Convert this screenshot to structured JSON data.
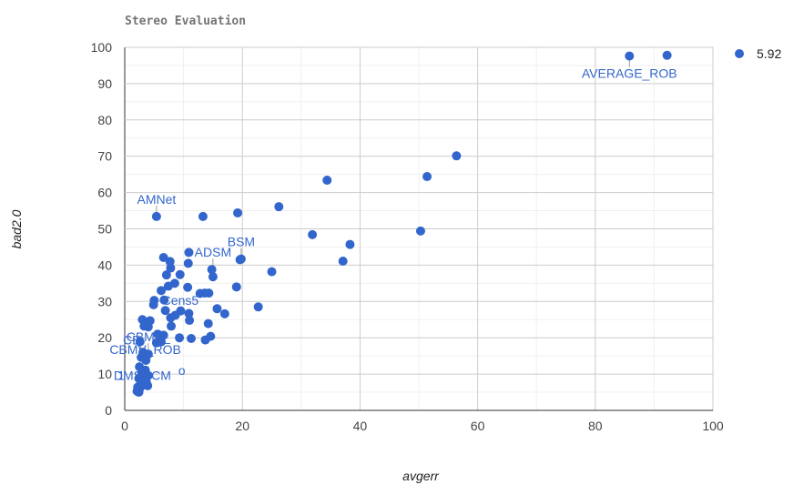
{
  "chart_data": {
    "type": "scatter",
    "title": "Stereo Evaluation",
    "xlabel": "avgerr",
    "ylabel": "bad2.0",
    "xlim": [
      0,
      100
    ],
    "ylim": [
      0,
      100
    ],
    "xticks": [
      "0",
      "20",
      "40",
      "60",
      "80",
      "100"
    ],
    "yticks": [
      "0",
      "10",
      "20",
      "30",
      "40",
      "50",
      "60",
      "70",
      "80",
      "90",
      "100"
    ],
    "grid": true,
    "legend_position": "right",
    "color": "#3366cc",
    "series": [
      {
        "name": "5.92",
        "points": [
          [
            85.8,
            97.6
          ],
          [
            92.2,
            97.8
          ],
          [
            56.4,
            70.1
          ],
          [
            51.4,
            64.4
          ],
          [
            50.3,
            49.4
          ],
          [
            34.4,
            63.4
          ],
          [
            26.2,
            56.1
          ],
          [
            31.9,
            48.4
          ],
          [
            38.3,
            45.7
          ],
          [
            37.1,
            41.1
          ],
          [
            25.0,
            38.2
          ],
          [
            22.7,
            28.5
          ],
          [
            19.2,
            54.4
          ],
          [
            13.3,
            53.4
          ],
          [
            5.4,
            53.4
          ],
          [
            19.8,
            41.7
          ],
          [
            19.6,
            41.5
          ],
          [
            19.0,
            34.0
          ],
          [
            14.8,
            38.8
          ],
          [
            15.0,
            36.8
          ],
          [
            10.9,
            43.5
          ],
          [
            10.8,
            40.5
          ],
          [
            6.6,
            42.1
          ],
          [
            7.7,
            41.0
          ],
          [
            7.8,
            39.2
          ],
          [
            7.1,
            37.3
          ],
          [
            9.4,
            37.4
          ],
          [
            8.5,
            35.0
          ],
          [
            7.4,
            34.2
          ],
          [
            6.2,
            33.0
          ],
          [
            10.7,
            33.9
          ],
          [
            13.6,
            32.3
          ],
          [
            14.3,
            32.3
          ],
          [
            12.8,
            32.2
          ],
          [
            15.7,
            28.0
          ],
          [
            17.0,
            26.6
          ],
          [
            10.9,
            26.7
          ],
          [
            11.0,
            24.8
          ],
          [
            14.2,
            23.9
          ],
          [
            11.3,
            19.8
          ],
          [
            13.7,
            19.4
          ],
          [
            14.6,
            20.4
          ],
          [
            9.5,
            27.4
          ],
          [
            8.6,
            26.2
          ],
          [
            7.8,
            25.5
          ],
          [
            5.0,
            30.3
          ],
          [
            4.9,
            29.1
          ],
          [
            6.9,
            27.5
          ],
          [
            6.7,
            30.4
          ],
          [
            3.0,
            25.0
          ],
          [
            3.3,
            23.2
          ],
          [
            4.3,
            24.7
          ],
          [
            4.0,
            23.0
          ],
          [
            5.6,
            21.0
          ],
          [
            7.9,
            23.2
          ],
          [
            6.6,
            20.7
          ],
          [
            9.3,
            20.0
          ],
          [
            2.6,
            18.9
          ],
          [
            5.4,
            18.6
          ],
          [
            6.2,
            18.9
          ],
          [
            3.1,
            16.0
          ],
          [
            4.0,
            15.5
          ],
          [
            2.8,
            14.6
          ],
          [
            3.6,
            13.8
          ],
          [
            2.5,
            12.0
          ],
          [
            3.5,
            11.1
          ],
          [
            2.9,
            10.2
          ],
          [
            4.0,
            9.6
          ],
          [
            2.4,
            8.8
          ],
          [
            3.1,
            8.1
          ],
          [
            3.7,
            7.6
          ],
          [
            2.7,
            7.3
          ],
          [
            3.3,
            7.0
          ],
          [
            3.9,
            6.8
          ],
          [
            2.2,
            6.4
          ],
          [
            2.5,
            5.9
          ],
          [
            2.1,
            5.3
          ],
          [
            2.4,
            5.0
          ]
        ]
      }
    ],
    "annotations": [
      {
        "text": "AVERAGE_ROB",
        "x": 85.8,
        "y": 97.6,
        "anchor": "middle",
        "pos": "below"
      },
      {
        "text": "AMNet",
        "x": 5.4,
        "y": 53.4,
        "anchor": "middle",
        "pos": "above"
      },
      {
        "text": "BSM",
        "x": 19.8,
        "y": 41.7,
        "anchor": "middle",
        "pos": "above"
      },
      {
        "text": "ADSM",
        "x": 15.0,
        "y": 38.8,
        "anchor": "middle",
        "pos": "above"
      },
      {
        "text": "Cens5",
        "x": 6.3,
        "y": 30.3,
        "anchor": "start",
        "pos": "level"
      },
      {
        "text": "CBMV_",
        "x": 4.0,
        "y": 15.5,
        "anchor": "middle",
        "pos": "above"
      },
      {
        "text": "CB",
        "x": 2.7,
        "y": 14.6,
        "anchor": "end",
        "pos": "above"
      },
      {
        "text": "CBMV_ROB",
        "x": 3.5,
        "y": 12.0,
        "anchor": "middle",
        "pos": "above"
      },
      {
        "text": "o",
        "x": 9.7,
        "y": 11.0,
        "anchor": "middle",
        "pos": "level"
      },
      {
        "text": "DMSRCM",
        "x": 3.0,
        "y": 9.6,
        "anchor": "middle",
        "pos": "level"
      },
      {
        "text": "1",
        "x": -0.6,
        "y": 9.6,
        "anchor": "middle",
        "pos": "level"
      },
      {
        "text": "1",
        "x": -0.6,
        "y": 9.6,
        "anchor": "middle",
        "pos": "level"
      }
    ]
  }
}
